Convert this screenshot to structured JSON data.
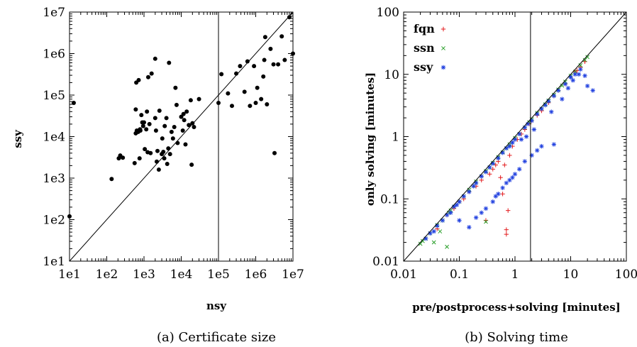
{
  "chart_data": [
    {
      "type": "scatter",
      "caption": "(a) Certificate size",
      "xlabel": "nsy",
      "ylabel": "ssy",
      "xscale": "log",
      "yscale": "log",
      "xlim": [
        10,
        10000000
      ],
      "ylim": [
        10,
        10000000
      ],
      "xticks": [
        "1e1",
        "1e2",
        "1e3",
        "1e4",
        "1e5",
        "1e6",
        "1e7"
      ],
      "yticks": [
        "1e1",
        "1e2",
        "1e3",
        "1e4",
        "1e5",
        "1e6",
        "1e7"
      ],
      "diagonal": true,
      "vline_x": 100000,
      "grid": false,
      "marker_color": "#000000",
      "points": [
        [
          10,
          120
        ],
        [
          13,
          65000
        ],
        [
          135,
          950
        ],
        [
          210,
          3000
        ],
        [
          230,
          3500
        ],
        [
          270,
          3100
        ],
        [
          560,
          2300
        ],
        [
          600,
          12000
        ],
        [
          600,
          45000
        ],
        [
          620,
          200000
        ],
        [
          640,
          14000
        ],
        [
          700,
          13000
        ],
        [
          720,
          230000
        ],
        [
          760,
          3000
        ],
        [
          780,
          15000
        ],
        [
          800,
          14000
        ],
        [
          850,
          33000
        ],
        [
          900,
          22000
        ],
        [
          950,
          18000
        ],
        [
          1000,
          22000
        ],
        [
          1050,
          5000
        ],
        [
          1150,
          15000
        ],
        [
          1200,
          40000
        ],
        [
          1250,
          4200
        ],
        [
          1300,
          270000
        ],
        [
          1400,
          20000
        ],
        [
          1500,
          4000
        ],
        [
          1600,
          330000
        ],
        [
          2000,
          750000
        ],
        [
          2000,
          28000
        ],
        [
          2100,
          14000
        ],
        [
          2200,
          2500
        ],
        [
          2300,
          4500
        ],
        [
          2500,
          1600
        ],
        [
          2600,
          42000
        ],
        [
          3000,
          3800
        ],
        [
          3100,
          9000
        ],
        [
          3300,
          4300
        ],
        [
          3500,
          3000
        ],
        [
          3600,
          18000
        ],
        [
          4000,
          28000
        ],
        [
          4200,
          2200
        ],
        [
          4500,
          5200
        ],
        [
          4700,
          600000
        ],
        [
          5000,
          3800
        ],
        [
          5500,
          13000
        ],
        [
          6000,
          9000
        ],
        [
          6500,
          17000
        ],
        [
          7000,
          150000
        ],
        [
          7500,
          58000
        ],
        [
          8000,
          7000
        ],
        [
          10000,
          30000
        ],
        [
          11000,
          14000
        ],
        [
          11500,
          35000
        ],
        [
          12000,
          25000
        ],
        [
          13000,
          6500
        ],
        [
          14000,
          40000
        ],
        [
          16000,
          19000
        ],
        [
          18000,
          75000
        ],
        [
          19000,
          2100
        ],
        [
          20000,
          21000
        ],
        [
          22000,
          17000
        ],
        [
          30000,
          80000
        ],
        [
          100000,
          65000
        ],
        [
          120000,
          320000
        ],
        [
          180000,
          110000
        ],
        [
          230000,
          55000
        ],
        [
          300000,
          330000
        ],
        [
          380000,
          500000
        ],
        [
          500000,
          120000
        ],
        [
          600000,
          650000
        ],
        [
          700000,
          55000
        ],
        [
          900000,
          500000
        ],
        [
          1000000,
          65000
        ],
        [
          1100000,
          150000
        ],
        [
          1400000,
          80000
        ],
        [
          1600000,
          280000
        ],
        [
          1700000,
          700000
        ],
        [
          1800000,
          2500000
        ],
        [
          2000000,
          60000
        ],
        [
          2500000,
          1300000
        ],
        [
          3000000,
          550000
        ],
        [
          3200000,
          4000
        ],
        [
          4000000,
          550000
        ],
        [
          5000000,
          2600000
        ],
        [
          6000000,
          700000
        ],
        [
          8000000,
          7500000
        ],
        [
          10000000,
          1000000
        ]
      ]
    },
    {
      "type": "scatter",
      "caption": "(b) Solving time",
      "xlabel": "pre/postprocess+solving [minutes]",
      "ylabel": "only solving [minutes]",
      "xscale": "log",
      "yscale": "log",
      "xlim": [
        0.01,
        100
      ],
      "ylim": [
        0.01,
        100
      ],
      "xticks": [
        "0.01",
        "0.1",
        "1",
        "10",
        "100"
      ],
      "yticks": [
        "0.01",
        "0.1",
        "1",
        "10",
        "100"
      ],
      "diagonal": true,
      "vline_x": 1.9,
      "grid": false,
      "legend_position": "top-left",
      "series": [
        {
          "name": "fqn",
          "marker": "+",
          "color": "#e31a1c",
          "points": [
            [
              0.04,
              0.033
            ],
            [
              0.06,
              0.055
            ],
            [
              0.08,
              0.07
            ],
            [
              0.1,
              0.09
            ],
            [
              0.12,
              0.1
            ],
            [
              0.15,
              0.13
            ],
            [
              0.2,
              0.16
            ],
            [
              0.25,
              0.2
            ],
            [
              0.3,
              0.045
            ],
            [
              0.35,
              0.25
            ],
            [
              0.4,
              0.3
            ],
            [
              0.45,
              0.35
            ],
            [
              0.5,
              0.4
            ],
            [
              0.55,
              0.22
            ],
            [
              0.6,
              0.12
            ],
            [
              0.65,
              0.35
            ],
            [
              0.7,
              0.027
            ],
            [
              0.7,
              0.032
            ],
            [
              0.75,
              0.065
            ],
            [
              0.8,
              0.5
            ],
            [
              0.9,
              0.7
            ],
            [
              1.0,
              0.9
            ],
            [
              1.1,
              0.9
            ],
            [
              1.3,
              1.1
            ],
            [
              1.5,
              1.3
            ],
            [
              1.8,
              1.6
            ],
            [
              2.0,
              1.8
            ],
            [
              2.5,
              2.2
            ],
            [
              3.0,
              2.6
            ],
            [
              4.0,
              3.5
            ],
            [
              5.0,
              4.5
            ],
            [
              6.0,
              5.5
            ],
            [
              8.0,
              7.0
            ],
            [
              10.0,
              9.0
            ],
            [
              12.0,
              11.0
            ],
            [
              13.0,
              11.5
            ],
            [
              15.0,
              13.0
            ],
            [
              18.0,
              16.0
            ]
          ]
        },
        {
          "name": "ssn",
          "marker": "x",
          "color": "#2ca02c",
          "points": [
            [
              0.02,
              0.019
            ],
            [
              0.022,
              0.021
            ],
            [
              0.025,
              0.023
            ],
            [
              0.03,
              0.028
            ],
            [
              0.035,
              0.02
            ],
            [
              0.04,
              0.038
            ],
            [
              0.045,
              0.03
            ],
            [
              0.05,
              0.045
            ],
            [
              0.06,
              0.017
            ],
            [
              0.065,
              0.06
            ],
            [
              0.07,
              0.065
            ],
            [
              0.08,
              0.075
            ],
            [
              0.1,
              0.09
            ],
            [
              0.12,
              0.11
            ],
            [
              0.15,
              0.14
            ],
            [
              0.18,
              0.16
            ],
            [
              0.2,
              0.19
            ],
            [
              0.25,
              0.23
            ],
            [
              0.3,
              0.28
            ],
            [
              0.3,
              0.043
            ],
            [
              0.35,
              0.32
            ],
            [
              0.4,
              0.38
            ],
            [
              0.5,
              0.47
            ],
            [
              0.6,
              0.56
            ],
            [
              0.7,
              0.65
            ],
            [
              0.8,
              0.75
            ],
            [
              1.0,
              0.95
            ],
            [
              1.2,
              1.1
            ],
            [
              1.5,
              1.4
            ],
            [
              1.8,
              1.7
            ],
            [
              2.0,
              1.9
            ],
            [
              2.5,
              2.4
            ],
            [
              3.0,
              2.8
            ],
            [
              3.5,
              3.3
            ],
            [
              4.0,
              3.8
            ],
            [
              5.0,
              4.7
            ],
            [
              6.0,
              5.7
            ],
            [
              7.0,
              6.6
            ],
            [
              8.0,
              7.6
            ],
            [
              10.0,
              9.5
            ],
            [
              12.0,
              11.0
            ],
            [
              15.0,
              14.0
            ],
            [
              18.0,
              17.0
            ],
            [
              20.0,
              19.0
            ]
          ]
        },
        {
          "name": "ssy",
          "marker": "*",
          "color": "#1f3fdf",
          "points": [
            [
              0.025,
              0.023
            ],
            [
              0.03,
              0.028
            ],
            [
              0.035,
              0.03
            ],
            [
              0.04,
              0.037
            ],
            [
              0.05,
              0.045
            ],
            [
              0.06,
              0.055
            ],
            [
              0.07,
              0.06
            ],
            [
              0.08,
              0.075
            ],
            [
              0.09,
              0.08
            ],
            [
              0.1,
              0.09
            ],
            [
              0.12,
              0.11
            ],
            [
              0.15,
              0.13
            ],
            [
              0.18,
              0.16
            ],
            [
              0.2,
              0.18
            ],
            [
              0.25,
              0.23
            ],
            [
              0.3,
              0.27
            ],
            [
              0.35,
              0.32
            ],
            [
              0.4,
              0.37
            ],
            [
              0.5,
              0.45
            ],
            [
              0.6,
              0.55
            ],
            [
              0.7,
              0.65
            ],
            [
              0.8,
              0.7
            ],
            [
              0.9,
              0.8
            ],
            [
              1.0,
              0.9
            ],
            [
              1.2,
              1.1
            ],
            [
              1.5,
              1.4
            ],
            [
              1.7,
              1.6
            ],
            [
              2.0,
              1.8
            ],
            [
              2.5,
              2.3
            ],
            [
              3.0,
              2.8
            ],
            [
              3.5,
              3.2
            ],
            [
              4.0,
              3.7
            ],
            [
              5.0,
              4.5
            ],
            [
              6.0,
              5.5
            ],
            [
              8.0,
              7.0
            ],
            [
              10.0,
              9.0
            ],
            [
              12.0,
              10.0
            ],
            [
              15.0,
              12.0
            ],
            [
              18.0,
              9.5
            ],
            [
              20.0,
              6.5
            ],
            [
              25.0,
              5.5
            ],
            [
              0.15,
              0.035
            ],
            [
              0.2,
              0.05
            ],
            [
              0.3,
              0.07
            ],
            [
              0.4,
              0.09
            ],
            [
              0.5,
              0.12
            ],
            [
              0.6,
              0.15
            ],
            [
              0.8,
              0.2
            ],
            [
              1.0,
              0.25
            ],
            [
              1.2,
              0.3
            ],
            [
              1.5,
              0.4
            ],
            [
              2.0,
              0.5
            ],
            [
              2.5,
              0.6
            ],
            [
              3.0,
              0.7
            ],
            [
              5.0,
              0.75
            ],
            [
              0.1,
              0.045
            ],
            [
              0.25,
              0.06
            ],
            [
              0.45,
              0.11
            ],
            [
              0.7,
              0.18
            ],
            [
              0.9,
              0.22
            ],
            [
              1.3,
              0.9
            ],
            [
              1.6,
              1.0
            ],
            [
              2.2,
              1.3
            ],
            [
              4.5,
              2.5
            ],
            [
              7.0,
              4.0
            ],
            [
              9.0,
              6.0
            ],
            [
              11.0,
              8.0
            ],
            [
              14.0,
              10.0
            ]
          ]
        }
      ]
    }
  ]
}
